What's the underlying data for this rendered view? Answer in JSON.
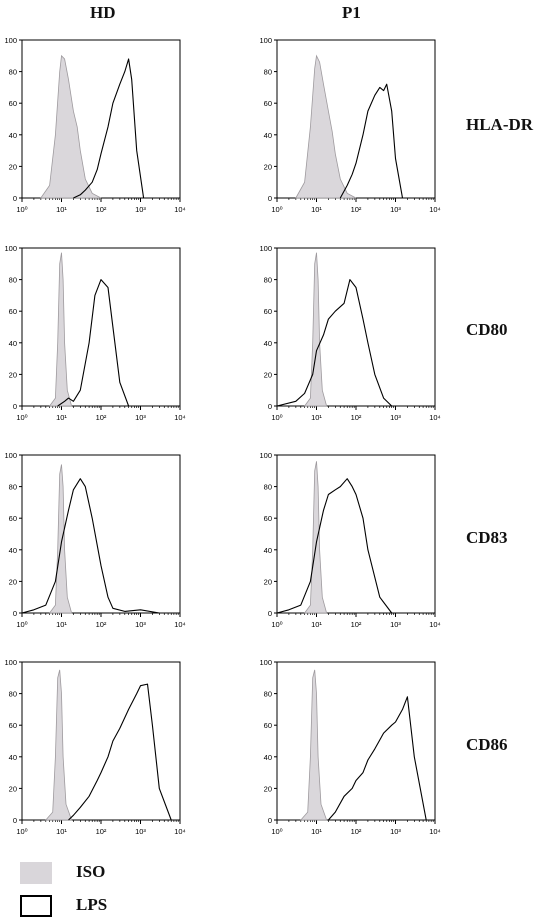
{
  "columns": [
    "HD",
    "P1"
  ],
  "rows": [
    "HLA-DR",
    "CD80",
    "CD83",
    "CD86"
  ],
  "legend": [
    {
      "label": "ISO",
      "fill": "#d9d6da",
      "stroke": "#b8b5b8"
    },
    {
      "label": "LPS",
      "fill": "#ffffff",
      "stroke": "#000000"
    }
  ],
  "colors": {
    "iso_fill": "#d6d3d7",
    "iso_stroke": "#9e9a9e",
    "lps_stroke": "#000000"
  },
  "chart_data": [
    {
      "type": "area",
      "column": "HD",
      "row": "HLA-DR",
      "xscale": "log",
      "xlim": [
        1,
        10000
      ],
      "ylim": [
        0,
        100
      ],
      "yticks": [
        0,
        20,
        40,
        60,
        80,
        100
      ],
      "xtick_labels": [
        "10⁰",
        "10¹",
        "10²",
        "10³",
        "10⁴"
      ],
      "series": [
        {
          "name": "ISO",
          "x": [
            3,
            5,
            7,
            9,
            10,
            12,
            15,
            20,
            25,
            30,
            40,
            60,
            100
          ],
          "y": [
            0,
            8,
            40,
            80,
            90,
            88,
            75,
            55,
            45,
            30,
            12,
            3,
            0
          ]
        },
        {
          "name": "LPS",
          "x": [
            20,
            30,
            40,
            60,
            80,
            100,
            150,
            200,
            300,
            400,
            500,
            600,
            800,
            1200
          ],
          "y": [
            0,
            2,
            5,
            10,
            18,
            28,
            45,
            60,
            72,
            80,
            88,
            75,
            30,
            0
          ]
        }
      ]
    },
    {
      "type": "area",
      "column": "P1",
      "row": "HLA-DR",
      "xscale": "log",
      "xlim": [
        1,
        10000
      ],
      "ylim": [
        0,
        100
      ],
      "yticks": [
        0,
        20,
        40,
        60,
        80,
        100
      ],
      "xtick_labels": [
        "10⁰",
        "10¹",
        "10²",
        "10³",
        "10⁴"
      ],
      "series": [
        {
          "name": "ISO",
          "x": [
            3,
            5,
            7,
            9,
            10,
            12,
            15,
            20,
            25,
            30,
            40,
            60,
            100
          ],
          "y": [
            0,
            10,
            45,
            82,
            90,
            86,
            72,
            55,
            42,
            28,
            12,
            3,
            0
          ]
        },
        {
          "name": "LPS",
          "x": [
            40,
            60,
            80,
            100,
            150,
            200,
            300,
            400,
            500,
            600,
            800,
            1000,
            1500
          ],
          "y": [
            0,
            8,
            15,
            22,
            40,
            55,
            65,
            70,
            68,
            72,
            55,
            25,
            0
          ]
        }
      ]
    },
    {
      "type": "area",
      "column": "HD",
      "row": "CD80",
      "xscale": "log",
      "xlim": [
        1,
        10000
      ],
      "ylim": [
        0,
        100
      ],
      "yticks": [
        0,
        20,
        40,
        60,
        80,
        100
      ],
      "xtick_labels": [
        "10⁰",
        "10¹",
        "10²",
        "10³",
        "10⁴"
      ],
      "series": [
        {
          "name": "ISO",
          "x": [
            5,
            7,
            8,
            9,
            10,
            11,
            12,
            14,
            18
          ],
          "y": [
            0,
            5,
            40,
            90,
            97,
            80,
            40,
            10,
            0
          ]
        },
        {
          "name": "LPS",
          "x": [
            8,
            12,
            15,
            20,
            30,
            50,
            70,
            100,
            150,
            200,
            300,
            500
          ],
          "y": [
            0,
            3,
            5,
            3,
            10,
            40,
            70,
            80,
            75,
            50,
            15,
            0
          ]
        }
      ]
    },
    {
      "type": "area",
      "column": "P1",
      "row": "CD80",
      "xscale": "log",
      "xlim": [
        1,
        10000
      ],
      "ylim": [
        0,
        100
      ],
      "yticks": [
        0,
        20,
        40,
        60,
        80,
        100
      ],
      "xtick_labels": [
        "10⁰",
        "10¹",
        "10²",
        "10³",
        "10⁴"
      ],
      "series": [
        {
          "name": "ISO",
          "x": [
            5,
            7,
            8,
            9,
            10,
            11,
            12,
            14,
            18
          ],
          "y": [
            0,
            5,
            40,
            90,
            97,
            80,
            40,
            10,
            0
          ]
        },
        {
          "name": "LPS",
          "x": [
            1,
            3,
            5,
            8,
            10,
            15,
            20,
            30,
            50,
            70,
            100,
            150,
            200,
            300,
            500,
            800
          ],
          "y": [
            0,
            3,
            8,
            20,
            35,
            45,
            55,
            60,
            65,
            80,
            75,
            55,
            40,
            20,
            5,
            0
          ]
        }
      ]
    },
    {
      "type": "area",
      "column": "HD",
      "row": "CD83",
      "xscale": "log",
      "xlim": [
        1,
        10000
      ],
      "ylim": [
        0,
        100
      ],
      "yticks": [
        0,
        20,
        40,
        60,
        80,
        100
      ],
      "xtick_labels": [
        "10⁰",
        "10¹",
        "10²",
        "10³",
        "10⁴"
      ],
      "series": [
        {
          "name": "ISO",
          "x": [
            5,
            7,
            8,
            9,
            10,
            11,
            12,
            14,
            18
          ],
          "y": [
            0,
            5,
            40,
            88,
            94,
            80,
            40,
            10,
            0
          ]
        },
        {
          "name": "LPS",
          "x": [
            1,
            2,
            4,
            7,
            10,
            15,
            20,
            30,
            40,
            60,
            100,
            150,
            200,
            400,
            1000,
            3000
          ],
          "y": [
            0,
            2,
            5,
            20,
            45,
            65,
            78,
            85,
            80,
            60,
            30,
            10,
            3,
            1,
            2,
            0
          ]
        }
      ]
    },
    {
      "type": "area",
      "column": "P1",
      "row": "CD83",
      "xscale": "log",
      "xlim": [
        1,
        10000
      ],
      "ylim": [
        0,
        100
      ],
      "yticks": [
        0,
        20,
        40,
        60,
        80,
        100
      ],
      "xtick_labels": [
        "10⁰",
        "10¹",
        "10²",
        "10³",
        "10⁴"
      ],
      "series": [
        {
          "name": "ISO",
          "x": [
            5,
            7,
            8,
            9,
            10,
            11,
            12,
            14,
            18
          ],
          "y": [
            0,
            5,
            40,
            90,
            96,
            80,
            40,
            10,
            0
          ]
        },
        {
          "name": "LPS",
          "x": [
            1,
            2,
            4,
            7,
            10,
            15,
            20,
            30,
            40,
            60,
            80,
            100,
            150,
            200,
            400,
            800
          ],
          "y": [
            0,
            2,
            5,
            20,
            45,
            65,
            75,
            78,
            80,
            85,
            80,
            75,
            60,
            40,
            10,
            0
          ]
        }
      ]
    },
    {
      "type": "area",
      "column": "HD",
      "row": "CD86",
      "xscale": "log",
      "xlim": [
        1,
        10000
      ],
      "ylim": [
        0,
        100
      ],
      "yticks": [
        0,
        20,
        40,
        60,
        80,
        100
      ],
      "xtick_labels": [
        "10⁰",
        "10¹",
        "10²",
        "10³",
        "10⁴"
      ],
      "series": [
        {
          "name": "ISO",
          "x": [
            4,
            6,
            7,
            8,
            9,
            10,
            11,
            13,
            18
          ],
          "y": [
            0,
            5,
            40,
            90,
            95,
            80,
            40,
            10,
            0
          ]
        },
        {
          "name": "LPS",
          "x": [
            15,
            20,
            30,
            50,
            80,
            100,
            150,
            200,
            300,
            500,
            800,
            1000,
            1500,
            2000,
            3000,
            6000
          ],
          "y": [
            0,
            3,
            8,
            15,
            25,
            30,
            40,
            50,
            58,
            70,
            80,
            85,
            86,
            60,
            20,
            0
          ]
        }
      ]
    },
    {
      "type": "area",
      "column": "P1",
      "row": "CD86",
      "xscale": "log",
      "xlim": [
        1,
        10000
      ],
      "ylim": [
        0,
        100
      ],
      "yticks": [
        0,
        20,
        40,
        60,
        80,
        100
      ],
      "xtick_labels": [
        "10⁰",
        "10¹",
        "10²",
        "10³",
        "10⁴"
      ],
      "series": [
        {
          "name": "ISO",
          "x": [
            4,
            6,
            7,
            8,
            9,
            10,
            11,
            13,
            18
          ],
          "y": [
            0,
            5,
            40,
            90,
            95,
            80,
            40,
            10,
            0
          ]
        },
        {
          "name": "LPS",
          "x": [
            20,
            30,
            50,
            80,
            100,
            150,
            200,
            300,
            500,
            800,
            1000,
            1500,
            2000,
            3000,
            6000
          ],
          "y": [
            0,
            5,
            15,
            20,
            25,
            30,
            38,
            45,
            55,
            60,
            62,
            70,
            78,
            40,
            0
          ]
        }
      ]
    }
  ]
}
